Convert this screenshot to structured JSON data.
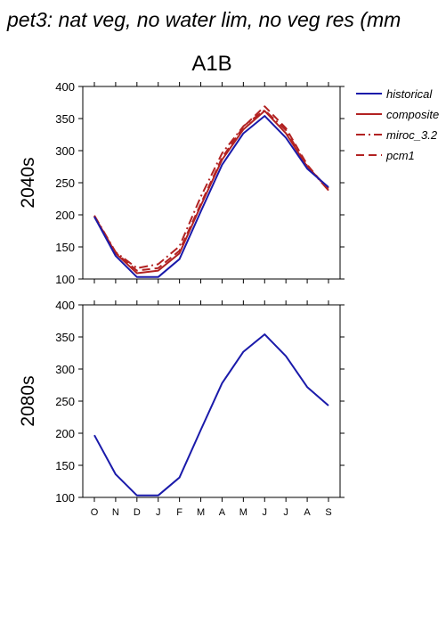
{
  "title": "pet3: nat veg, no water lim, no veg res (mm",
  "scenario": "A1B",
  "colors": {
    "historical": "#1a1aaa",
    "composite": "#b22222",
    "miroc_3.2": "#b22222",
    "pcm1": "#b22222"
  },
  "chart_data": [
    {
      "type": "line",
      "row_label": "2040s",
      "categories": [
        "O",
        "N",
        "D",
        "J",
        "F",
        "M",
        "A",
        "M",
        "J",
        "J",
        "A",
        "S"
      ],
      "ylim": [
        100,
        400
      ],
      "yticks": [
        100,
        150,
        200,
        250,
        300,
        350,
        400
      ],
      "series": [
        {
          "name": "historical",
          "style": "solid",
          "values": [
            197,
            136,
            103,
            103,
            131,
            205,
            278,
            327,
            354,
            320,
            272,
            243
          ]
        },
        {
          "name": "composite",
          "style": "solid",
          "values": [
            198,
            140,
            109,
            113,
            140,
            214,
            286,
            333,
            362,
            327,
            275,
            241
          ]
        },
        {
          "name": "miroc_3.2",
          "style": "dashdot",
          "values": [
            199,
            142,
            117,
            123,
            151,
            228,
            296,
            338,
            363,
            332,
            276,
            238
          ]
        },
        {
          "name": "pcm1",
          "style": "dashed",
          "values": [
            197,
            141,
            113,
            117,
            144,
            217,
            289,
            337,
            369,
            335,
            278,
            238
          ]
        }
      ]
    },
    {
      "type": "line",
      "row_label": "2080s",
      "categories": [
        "O",
        "N",
        "D",
        "J",
        "F",
        "M",
        "A",
        "M",
        "J",
        "J",
        "A",
        "S"
      ],
      "ylim": [
        100,
        400
      ],
      "yticks": [
        100,
        150,
        200,
        250,
        300,
        350,
        400
      ],
      "series": [
        {
          "name": "historical",
          "style": "solid",
          "values": [
            197,
            136,
            103,
            103,
            131,
            205,
            278,
            327,
            354,
            320,
            272,
            243
          ]
        }
      ]
    }
  ],
  "legend": [
    {
      "name": "historical",
      "style": "solid"
    },
    {
      "name": "composite",
      "style": "solid"
    },
    {
      "name": "miroc_3.2",
      "style": "dashdot"
    },
    {
      "name": "pcm1",
      "style": "dashed"
    }
  ]
}
